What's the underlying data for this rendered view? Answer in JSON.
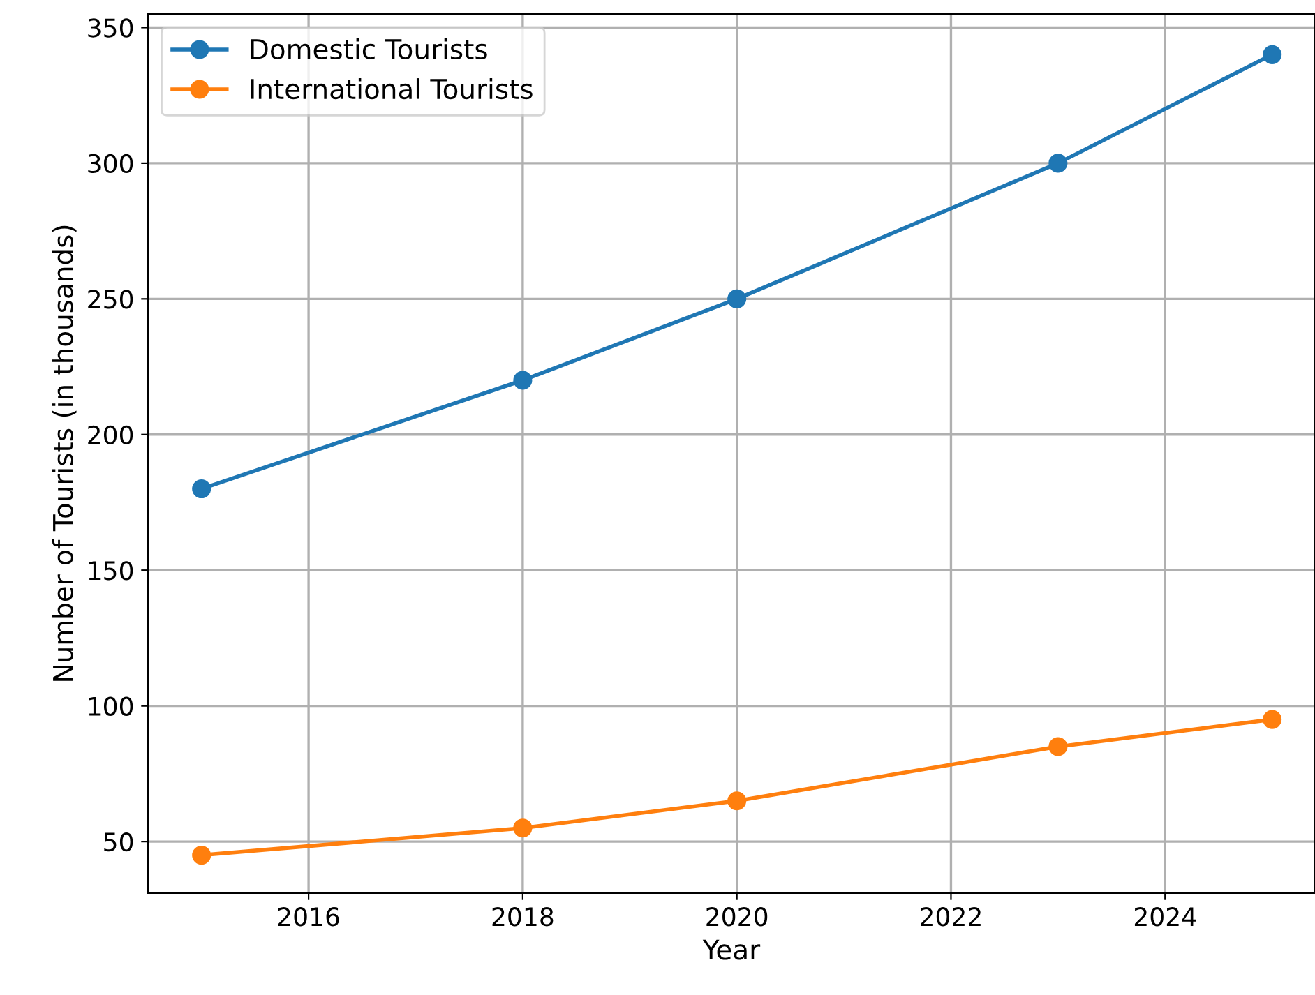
{
  "chart_data": {
    "type": "line",
    "xlabel": "Year",
    "ylabel": "Number of Tourists (in thousands)",
    "x": [
      2015,
      2018,
      2020,
      2023,
      2025
    ],
    "series": [
      {
        "name": "Domestic Tourists",
        "color": "#1f77b4",
        "values": [
          180,
          220,
          250,
          300,
          340
        ]
      },
      {
        "name": "International Tourists",
        "color": "#ff7f0e",
        "values": [
          45,
          55,
          65,
          85,
          95
        ]
      }
    ],
    "xlim": [
      2014.5,
      2025.4
    ],
    "xticks": [
      2016,
      2018,
      2020,
      2022,
      2024
    ],
    "ylim": [
      31,
      355
    ],
    "yticks": [
      50,
      100,
      150,
      200,
      250,
      300,
      350
    ],
    "grid": true,
    "legend": "top left",
    "marker": "circle",
    "line_style": "solid"
  }
}
